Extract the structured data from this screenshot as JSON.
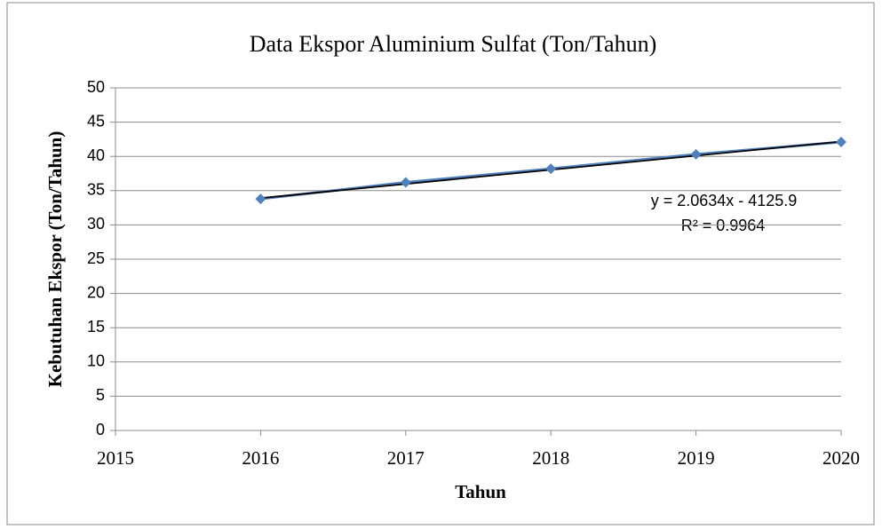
{
  "chart_data": {
    "type": "line",
    "title": "Data Ekspor Aluminium Sulfat (Ton/Tahun)",
    "x_label": "Tahun",
    "y_label": "Kebutuhan Ekspor  (Ton/Tahun)",
    "x": [
      2016,
      2017,
      2018,
      2019,
      2020
    ],
    "series": [
      {
        "color": "#4f81bd",
        "values": [
          33.8,
          36.2,
          38.2,
          40.3,
          42.1
        ]
      }
    ],
    "trendline": {
      "slope": 2.0634,
      "intercept": -4125.9,
      "color": "#000000"
    },
    "annotations": [
      "y = 2.0634x - 4125.9",
      "R² = 0.9964"
    ],
    "xlim": [
      2015,
      2020
    ],
    "xticks": [
      2015,
      2016,
      2017,
      2018,
      2019,
      2020
    ],
    "ylim": [
      0,
      50
    ],
    "yticks": [
      0,
      5,
      10,
      15,
      20,
      25,
      30,
      35,
      40,
      45,
      50
    ],
    "grid": true
  }
}
